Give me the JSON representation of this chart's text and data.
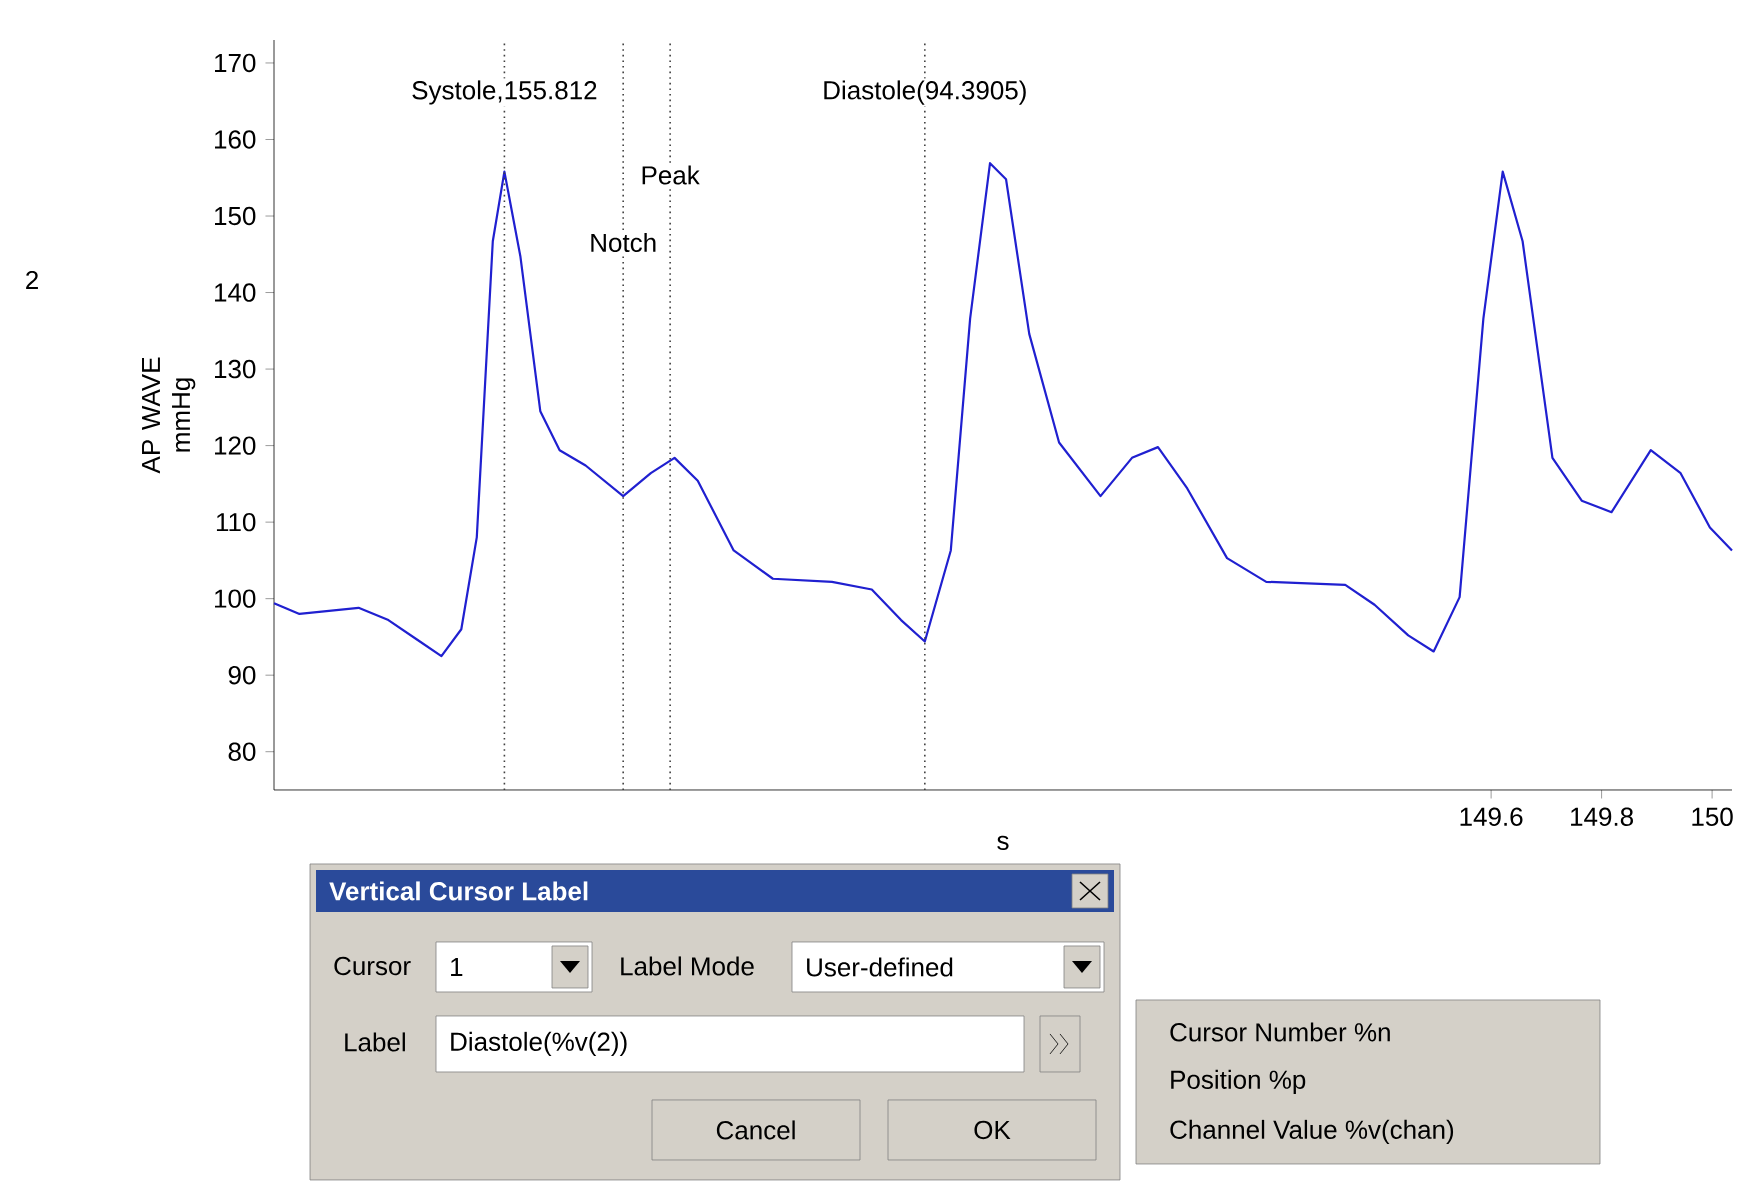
{
  "chart_data": {
    "type": "line",
    "x": [
      147.397,
      147.443,
      147.55,
      147.604,
      147.657,
      147.7,
      147.736,
      147.764,
      147.793,
      147.814,
      147.843,
      147.879,
      147.914,
      147.961,
      148.029,
      148.079,
      148.122,
      148.164,
      148.229,
      148.3,
      148.407,
      148.479,
      148.532,
      148.575,
      148.622,
      148.657,
      148.693,
      148.722,
      148.764,
      148.818,
      148.893,
      148.95,
      148.997,
      149.05,
      149.122,
      149.193,
      149.336,
      149.389,
      149.45,
      149.496,
      149.543,
      149.586,
      149.621,
      149.657,
      149.711,
      149.764,
      149.818,
      149.889,
      149.943,
      149.996,
      150.036
    ],
    "series": [
      {
        "color": "#2020d0",
        "values": [
          99.4,
          98,
          98.8,
          97.2,
          94.6,
          92.5,
          96,
          108,
          146.7,
          155.8,
          144.7,
          124.5,
          119.4,
          117.4,
          113.4,
          116.4,
          118.4,
          115.4,
          106.3,
          102.6,
          102.2,
          101.2,
          97.2,
          94.4,
          106.3,
          136.6,
          156.9,
          154.8,
          134.6,
          120.4,
          113.4,
          118.4,
          119.8,
          114.4,
          105.3,
          102.2,
          101.8,
          99.2,
          95.2,
          93.1,
          100.2,
          136.6,
          155.8,
          146.7,
          118.4,
          112.8,
          111.3,
          119.4,
          116.4,
          109.3,
          106.3
        ]
      }
    ],
    "xlim": [
      147.397,
      150.036
    ],
    "ylim": [
      75,
      173
    ],
    "xticks": [
      149.6,
      149.8,
      150
    ],
    "yticks": [
      80,
      90,
      100,
      110,
      120,
      130,
      140,
      150,
      160,
      170
    ],
    "xlabel": "s",
    "ylabel": "AP WAVE mmHg",
    "ref_lines": [
      {
        "axis": "x",
        "value": 147.814,
        "label": "Systole,155.812",
        "color": "#404040",
        "line_style": "dotted"
      },
      {
        "axis": "x",
        "value": 148.029,
        "label": "Notch",
        "color": "#404040",
        "line_style": "dotted"
      },
      {
        "axis": "x",
        "value": 148.114,
        "label": "Peak",
        "color": "#404040",
        "line_style": "dotted"
      },
      {
        "axis": "x",
        "value": 148.575,
        "label": "Diastole(94.3905)",
        "color": "#404040",
        "line_style": "dotted"
      }
    ],
    "annotations": [
      "2",
      "Vertical Cursor Label",
      "Cursor",
      "1",
      "Label Mode",
      "User-defined",
      "Label",
      "Diastole(%v(2))",
      "Cancel",
      "OK",
      "Cursor Number %n",
      "Position %p",
      "Channel Value %v(chan)"
    ]
  }
}
